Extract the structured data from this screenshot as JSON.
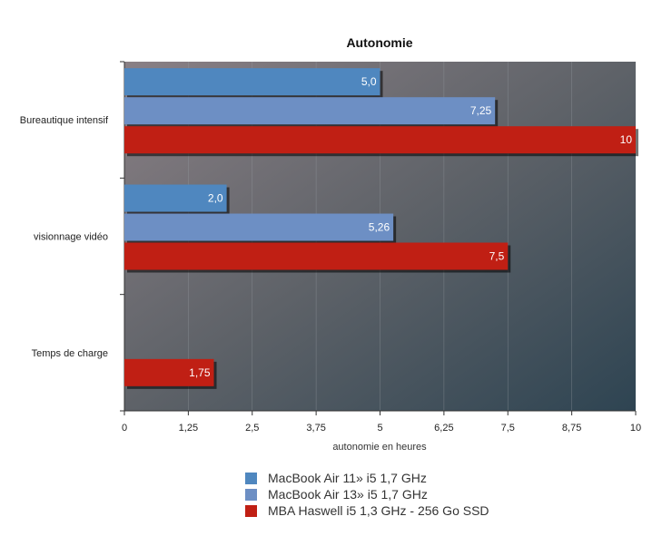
{
  "chart_data": {
    "type": "bar",
    "orientation": "horizontal",
    "title": "Autonomie",
    "xlabel": "autonomie en heures",
    "ylabel": "",
    "xlim": [
      0,
      10
    ],
    "xticks": [
      0,
      1.25,
      2.5,
      3.75,
      5,
      6.25,
      7.5,
      8.75,
      10
    ],
    "xtick_labels": [
      "0",
      "1,25",
      "2,5",
      "3,75",
      "5",
      "6,25",
      "7,5",
      "8,75",
      "10"
    ],
    "grid": true,
    "legend_position": "bottom",
    "categories": [
      "Bureautique intensif",
      "visionnage vidéo",
      "Temps de charge"
    ],
    "series": [
      {
        "name": "MacBook Air 11» i5 1,7 GHz",
        "color": "#4f87bf",
        "values": [
          5.0,
          2.0,
          null
        ],
        "labels": [
          "5,0",
          "2,0",
          ""
        ]
      },
      {
        "name": "MacBook Air 13» i5 1,7 GHz",
        "color": "#6d8fc4",
        "values": [
          7.25,
          5.26,
          null
        ],
        "labels": [
          "7,25",
          "5,26",
          ""
        ]
      },
      {
        "name": "MBA Haswell i5 1,3 GHz - 256 Go SSD",
        "color": "#c01f14",
        "values": [
          10,
          7.5,
          1.75
        ],
        "labels": [
          "10",
          "7,5",
          "1,75"
        ]
      }
    ]
  }
}
